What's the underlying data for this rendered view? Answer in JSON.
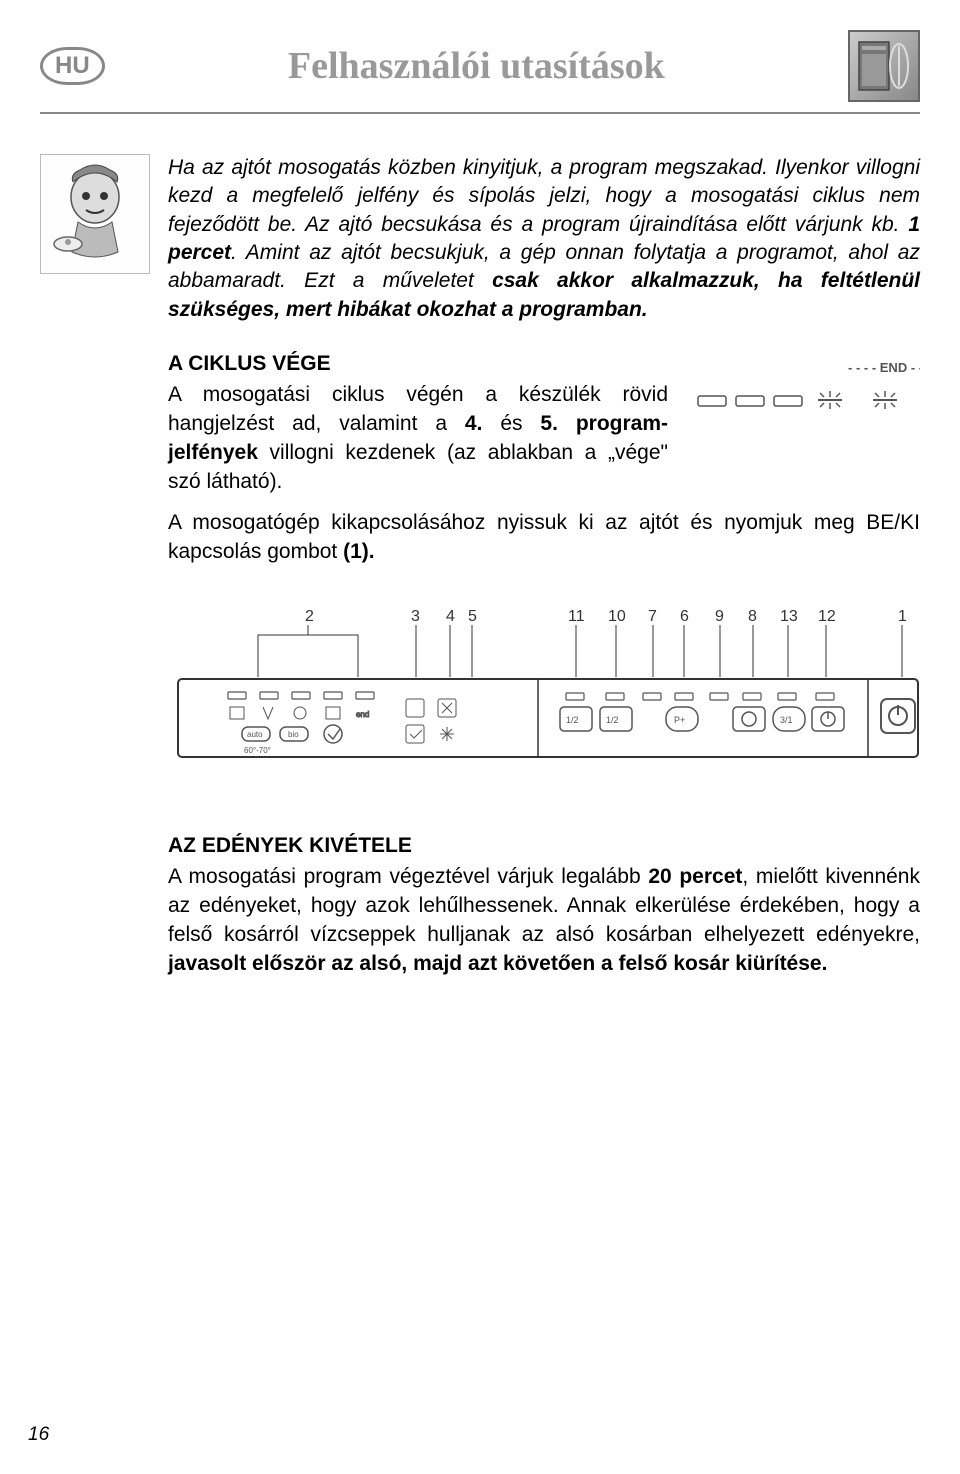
{
  "header": {
    "lang_code": "HU",
    "title": "Felhasználói utasítások"
  },
  "callout": {
    "text_parts": [
      {
        "t": "Ha az ajtót mosogatás közben kinyitjuk, a program megszakad. Ilyenkor villogni kezd a megfelelő jelfény és sípolás jelzi, hogy a mosogatási ciklus nem fejeződött be. Az ajtó becsukása és a program újraindítása előtt várjunk kb. ",
        "b": false
      },
      {
        "t": "1 percet",
        "b": true
      },
      {
        "t": ". Amint az ajtót becsukjuk, a gép onnan folytatja a programot, ahol az abbamaradt. Ezt a műveletet ",
        "b": false
      },
      {
        "t": "csak akkor alkalmazzuk, ha feltétlenül szükséges, mert hibákat okozhat a programban.",
        "b": true
      }
    ]
  },
  "cycle_end": {
    "heading": "A CIKLUS VÉGE",
    "body_parts": [
      {
        "t": "A mosogatási ciklus végén a készülék rövid hangjelzést ad, valamint a ",
        "b": false
      },
      {
        "t": "4.",
        "b": true
      },
      {
        "t": " és ",
        "b": false
      },
      {
        "t": "5. program-jelfények",
        "b": true
      },
      {
        "t": " villogni kezdenek (az ablakban a „vége\" szó látható).",
        "b": false
      }
    ],
    "followup_parts": [
      {
        "t": "A mosogatógép kikapcsolásához nyissuk ki az ajtót és nyomjuk meg BE/KI kapcsolás gombot ",
        "b": false
      },
      {
        "t": "(1).",
        "b": true
      }
    ],
    "diagram_label": "END"
  },
  "panel": {
    "labels": [
      "2",
      "3",
      "4",
      "5",
      "11",
      "10",
      "7",
      "6",
      "9",
      "8",
      "13",
      "12",
      "1"
    ],
    "button_texts": [
      "auto",
      "bio",
      "end",
      "60°-70°",
      "1/2",
      "1/2",
      "P+",
      "3/1"
    ]
  },
  "removal": {
    "heading": "AZ EDÉNYEK KIVÉTELE",
    "body_parts": [
      {
        "t": "A mosogatási program végeztével várjuk legalább ",
        "b": false
      },
      {
        "t": "20 percet",
        "b": true
      },
      {
        "t": ", mielőtt kivennénk az edényeket, hogy azok lehűlhessenek. Annak elkerülése érdekében, hogy a felső kosárról vízcseppek hulljanak az alsó kosárban elhelyezett edényekre, ",
        "b": false
      },
      {
        "t": "javasolt először az alsó, majd azt követően a felső kosár kiürítése.",
        "b": true
      }
    ]
  },
  "page_number": "16",
  "colors": {
    "title_gray": "#999999",
    "border_gray": "#888888",
    "text_black": "#000000"
  }
}
